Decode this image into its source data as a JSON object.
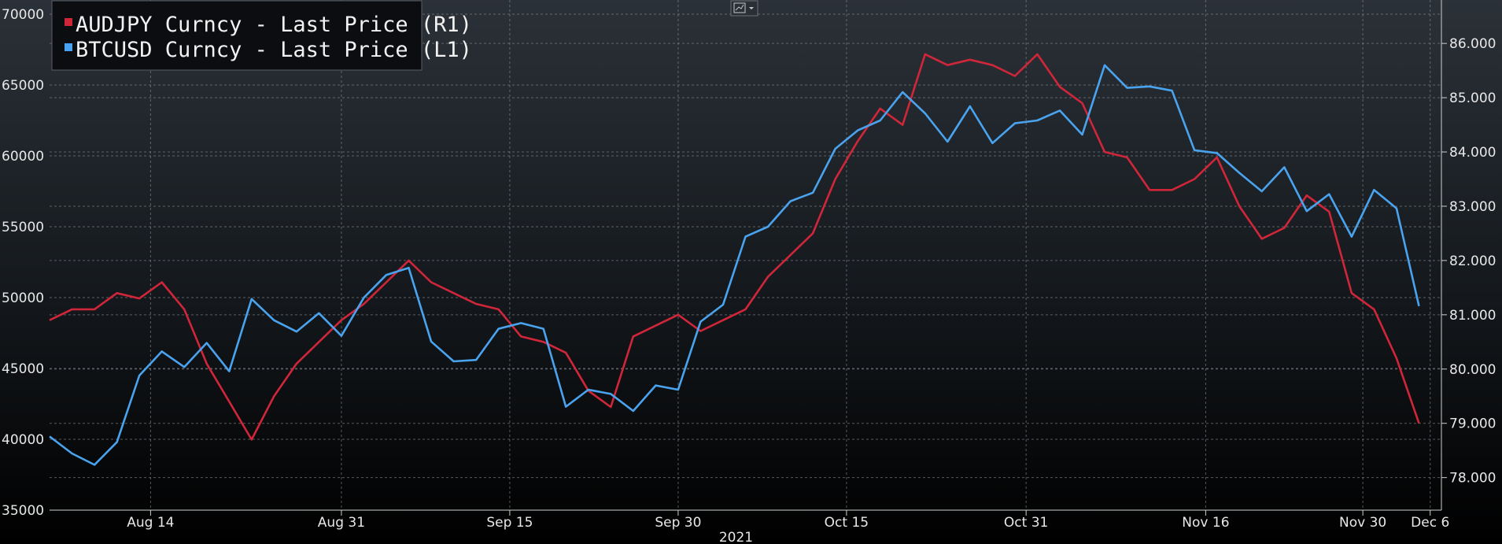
{
  "colors": {
    "audjpy": "#d0263a",
    "btcusd": "#4aa3ee",
    "grid": "#8a8f96",
    "axis": "#cfcfcf"
  },
  "toolbar_icon": "chart-type-icon",
  "chart_data": {
    "type": "line",
    "year_label": "2021",
    "x_tick_labels": [
      "Aug 14",
      "Aug 31",
      "Sep 15",
      "Sep 30",
      "Oct 15",
      "Oct 31",
      "Nov 16",
      "Nov 30",
      "Dec 6"
    ],
    "x_tick_dates": [
      "2021-08-14",
      "2021-08-31",
      "2021-09-15",
      "2021-09-30",
      "2021-10-15",
      "2021-10-31",
      "2021-11-16",
      "2021-11-30",
      "2021-12-06"
    ],
    "xlim": [
      "2021-08-05",
      "2021-12-07"
    ],
    "left_axis": {
      "ylim": [
        35000,
        71000
      ],
      "ticks": [
        35000,
        40000,
        45000,
        50000,
        55000,
        60000,
        65000,
        70000
      ],
      "tick_labels": [
        "35000",
        "40000",
        "45000",
        "50000",
        "55000",
        "60000",
        "65000",
        "70000"
      ]
    },
    "right_axis": {
      "ylim": [
        77.4,
        86.8
      ],
      "ticks": [
        78,
        79,
        80,
        81,
        82,
        83,
        84,
        85,
        86
      ],
      "tick_labels": [
        "78.000",
        "79.000",
        "80.000",
        "81.000",
        "82.000",
        "83.000",
        "84.000",
        "85.000",
        "86.000"
      ]
    },
    "grid": true,
    "legend_position": "top-left",
    "series": [
      {
        "name": "AUDJPY Curncy - Last Price (R1)",
        "axis": "right",
        "color": "#d0263a",
        "x": [
          "2021-08-05",
          "2021-08-07",
          "2021-08-09",
          "2021-08-11",
          "2021-08-13",
          "2021-08-15",
          "2021-08-17",
          "2021-08-19",
          "2021-08-21",
          "2021-08-23",
          "2021-08-25",
          "2021-08-27",
          "2021-08-29",
          "2021-08-31",
          "2021-09-02",
          "2021-09-04",
          "2021-09-06",
          "2021-09-08",
          "2021-09-10",
          "2021-09-12",
          "2021-09-14",
          "2021-09-16",
          "2021-09-18",
          "2021-09-20",
          "2021-09-22",
          "2021-09-24",
          "2021-09-26",
          "2021-09-28",
          "2021-09-30",
          "2021-10-02",
          "2021-10-04",
          "2021-10-06",
          "2021-10-08",
          "2021-10-10",
          "2021-10-12",
          "2021-10-14",
          "2021-10-16",
          "2021-10-18",
          "2021-10-20",
          "2021-10-22",
          "2021-10-24",
          "2021-10-26",
          "2021-10-28",
          "2021-10-30",
          "2021-11-01",
          "2021-11-03",
          "2021-11-05",
          "2021-11-07",
          "2021-11-09",
          "2021-11-11",
          "2021-11-13",
          "2021-11-15",
          "2021-11-17",
          "2021-11-19",
          "2021-11-21",
          "2021-11-23",
          "2021-11-25",
          "2021-11-27",
          "2021-11-29",
          "2021-12-01",
          "2021-12-03",
          "2021-12-05"
        ],
        "values": [
          80.9,
          81.1,
          81.1,
          81.4,
          81.3,
          81.6,
          81.1,
          80.1,
          79.4,
          78.7,
          79.5,
          80.1,
          80.5,
          80.9,
          81.2,
          81.6,
          82.0,
          81.6,
          81.4,
          81.2,
          81.1,
          80.6,
          80.5,
          80.3,
          79.6,
          79.3,
          80.6,
          80.8,
          81.0,
          80.7,
          80.9,
          81.1,
          81.7,
          82.1,
          82.5,
          83.5,
          84.2,
          84.8,
          84.5,
          85.8,
          85.6,
          85.7,
          85.6,
          85.4,
          85.8,
          85.2,
          84.9,
          84.0,
          83.9,
          83.3,
          83.3,
          83.5,
          83.9,
          83.0,
          82.4,
          82.6,
          83.2,
          82.9,
          81.4,
          81.1,
          80.2,
          79.0
        ]
      },
      {
        "name": "BTCUSD Curncy - Last Price (L1)",
        "axis": "left",
        "color": "#4aa3ee",
        "x": [
          "2021-08-05",
          "2021-08-07",
          "2021-08-09",
          "2021-08-11",
          "2021-08-13",
          "2021-08-15",
          "2021-08-17",
          "2021-08-19",
          "2021-08-21",
          "2021-08-23",
          "2021-08-25",
          "2021-08-27",
          "2021-08-29",
          "2021-08-31",
          "2021-09-02",
          "2021-09-04",
          "2021-09-06",
          "2021-09-08",
          "2021-09-10",
          "2021-09-12",
          "2021-09-14",
          "2021-09-16",
          "2021-09-18",
          "2021-09-20",
          "2021-09-22",
          "2021-09-24",
          "2021-09-26",
          "2021-09-28",
          "2021-09-30",
          "2021-10-02",
          "2021-10-04",
          "2021-10-06",
          "2021-10-08",
          "2021-10-10",
          "2021-10-12",
          "2021-10-14",
          "2021-10-16",
          "2021-10-18",
          "2021-10-20",
          "2021-10-22",
          "2021-10-24",
          "2021-10-26",
          "2021-10-28",
          "2021-10-30",
          "2021-11-01",
          "2021-11-03",
          "2021-11-05",
          "2021-11-07",
          "2021-11-09",
          "2021-11-11",
          "2021-11-13",
          "2021-11-15",
          "2021-11-17",
          "2021-11-19",
          "2021-11-21",
          "2021-11-23",
          "2021-11-25",
          "2021-11-27",
          "2021-11-29",
          "2021-12-01",
          "2021-12-03",
          "2021-12-05"
        ],
        "values": [
          40200,
          39000,
          38200,
          39800,
          44500,
          46200,
          45100,
          46800,
          44800,
          49900,
          48400,
          47600,
          48900,
          47300,
          50000,
          51600,
          52100,
          46900,
          45500,
          45600,
          47800,
          48200,
          47800,
          42300,
          43500,
          43200,
          42000,
          43800,
          43500,
          48300,
          49500,
          54300,
          55000,
          56800,
          57400,
          60500,
          61800,
          62500,
          64500,
          63000,
          61000,
          63500,
          60900,
          62300,
          62500,
          63200,
          61500,
          66400,
          64800,
          64900,
          64600,
          60400,
          60200,
          58800,
          57500,
          59200,
          56100,
          57300,
          54300,
          57600,
          56300,
          49400
        ]
      }
    ]
  }
}
